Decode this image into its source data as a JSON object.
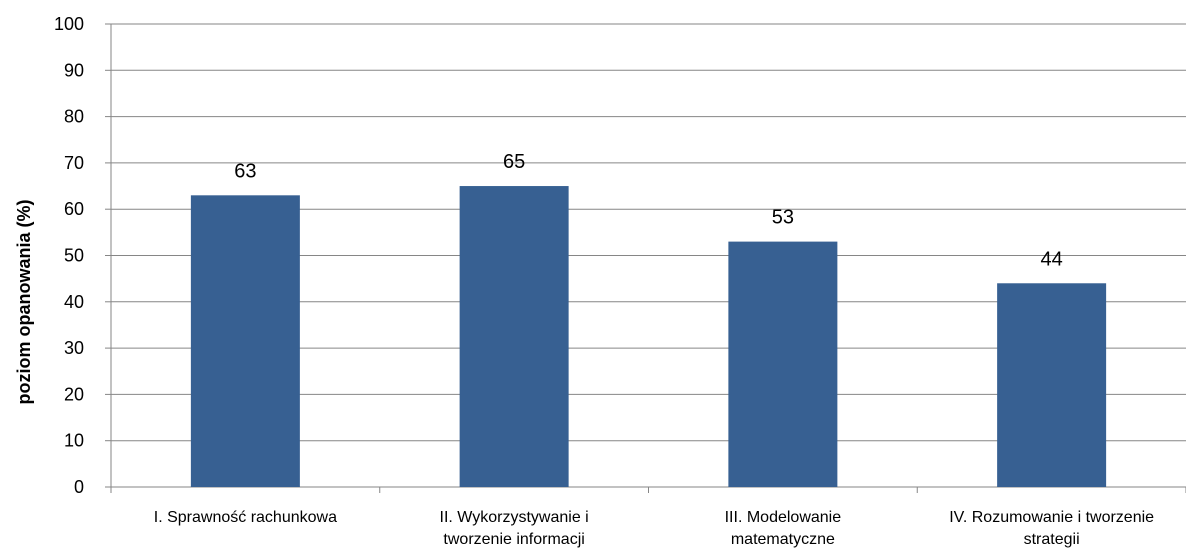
{
  "chart_data": {
    "type": "bar",
    "categories": [
      [
        "I. Sprawność rachunkowa"
      ],
      [
        "II. Wykorzystywanie i",
        "tworzenie informacji"
      ],
      [
        "III. Modelowanie",
        "matematyczne"
      ],
      [
        "IV. Rozumowanie i tworzenie",
        "strategii"
      ]
    ],
    "values": [
      63,
      65,
      53,
      44
    ],
    "ylabel": "poziom opanowania (%)",
    "ylim": [
      0,
      100
    ],
    "yticks": [
      0,
      10,
      20,
      30,
      40,
      50,
      60,
      70,
      80,
      90,
      100
    ],
    "grid": true,
    "colors": {
      "bar": "#376092",
      "grid": "#868686",
      "axis": "#868686"
    }
  }
}
